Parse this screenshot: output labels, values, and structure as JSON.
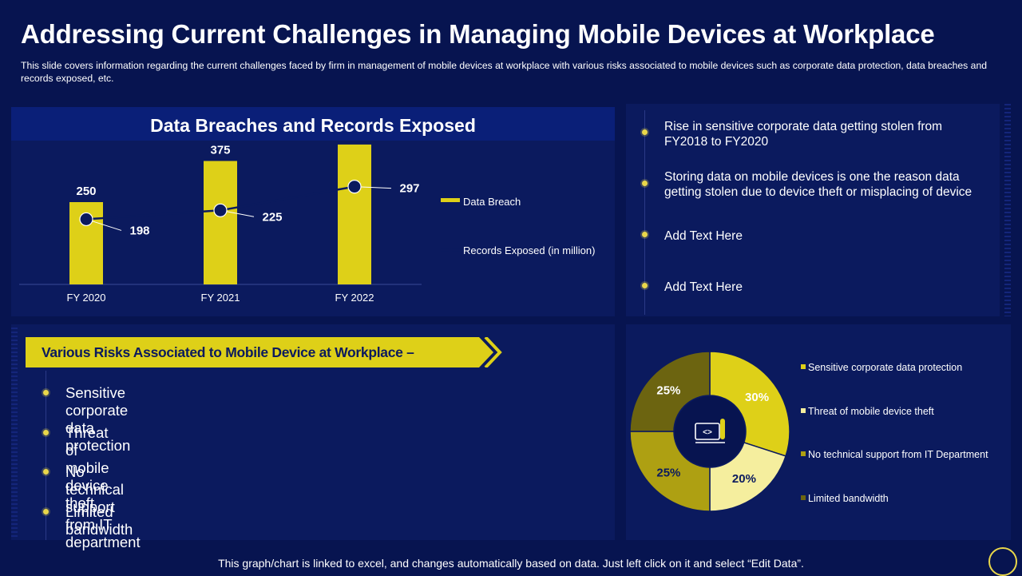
{
  "header": {
    "title": "Addressing Current Challenges in Managing Mobile Devices at Workplace",
    "subtitle": "This slide covers information regarding the current challenges faced by firm in management of mobile devices at workplace with various risks associated to mobile devices such as corporate data protection, data breaches and records exposed, etc."
  },
  "colors": {
    "background": "#071450",
    "panel": "#0b1a5e",
    "accent_yellow": "#ded018",
    "line_color": "#0b1a5e"
  },
  "chart_data": [
    {
      "type": "bar",
      "title": "Data Breaches and Records Exposed",
      "categories": [
        "FY 2020",
        "FY 2021",
        "FY 2022"
      ],
      "series": [
        {
          "name": "Data Breach",
          "type": "bar",
          "values": [
            250,
            375,
            425
          ]
        },
        {
          "name": "Records Exposed (in million)",
          "type": "line",
          "values": [
            198,
            225,
            297
          ]
        }
      ],
      "ylim": [
        0,
        500
      ],
      "grid": false,
      "legend": "right"
    },
    {
      "type": "pie",
      "labels": [
        "Sensitive corporate data protection",
        "Threat of mobile device theft",
        "No technical support from IT Department",
        "Limited bandwidth"
      ],
      "values": [
        30,
        20,
        25,
        25
      ],
      "value_labels": [
        "30%",
        "20%",
        "25%",
        "25%"
      ],
      "colors": [
        "#ded018",
        "#f5ee9e",
        "#aea012",
        "#6c6410"
      ],
      "legend": "right",
      "center_icon": "code-document-icon"
    }
  ],
  "insights": [
    "Rise in sensitive corporate data getting stolen from FY2018 to FY2020",
    "Storing data on mobile devices is one the reason data getting stolen due to device theft or misplacing of device",
    "Add Text Here",
    "Add Text Here"
  ],
  "risks": {
    "heading": "Various Risks Associated to Mobile Device at Workplace –",
    "items": [
      "Sensitive corporate data protection",
      "Threat of mobile device theft",
      "No technical support from IT department",
      "Limited bandwidth"
    ]
  },
  "footer": "This graph/chart is linked to excel, and changes automatically based on data. Just left click on it and select “Edit Data”."
}
